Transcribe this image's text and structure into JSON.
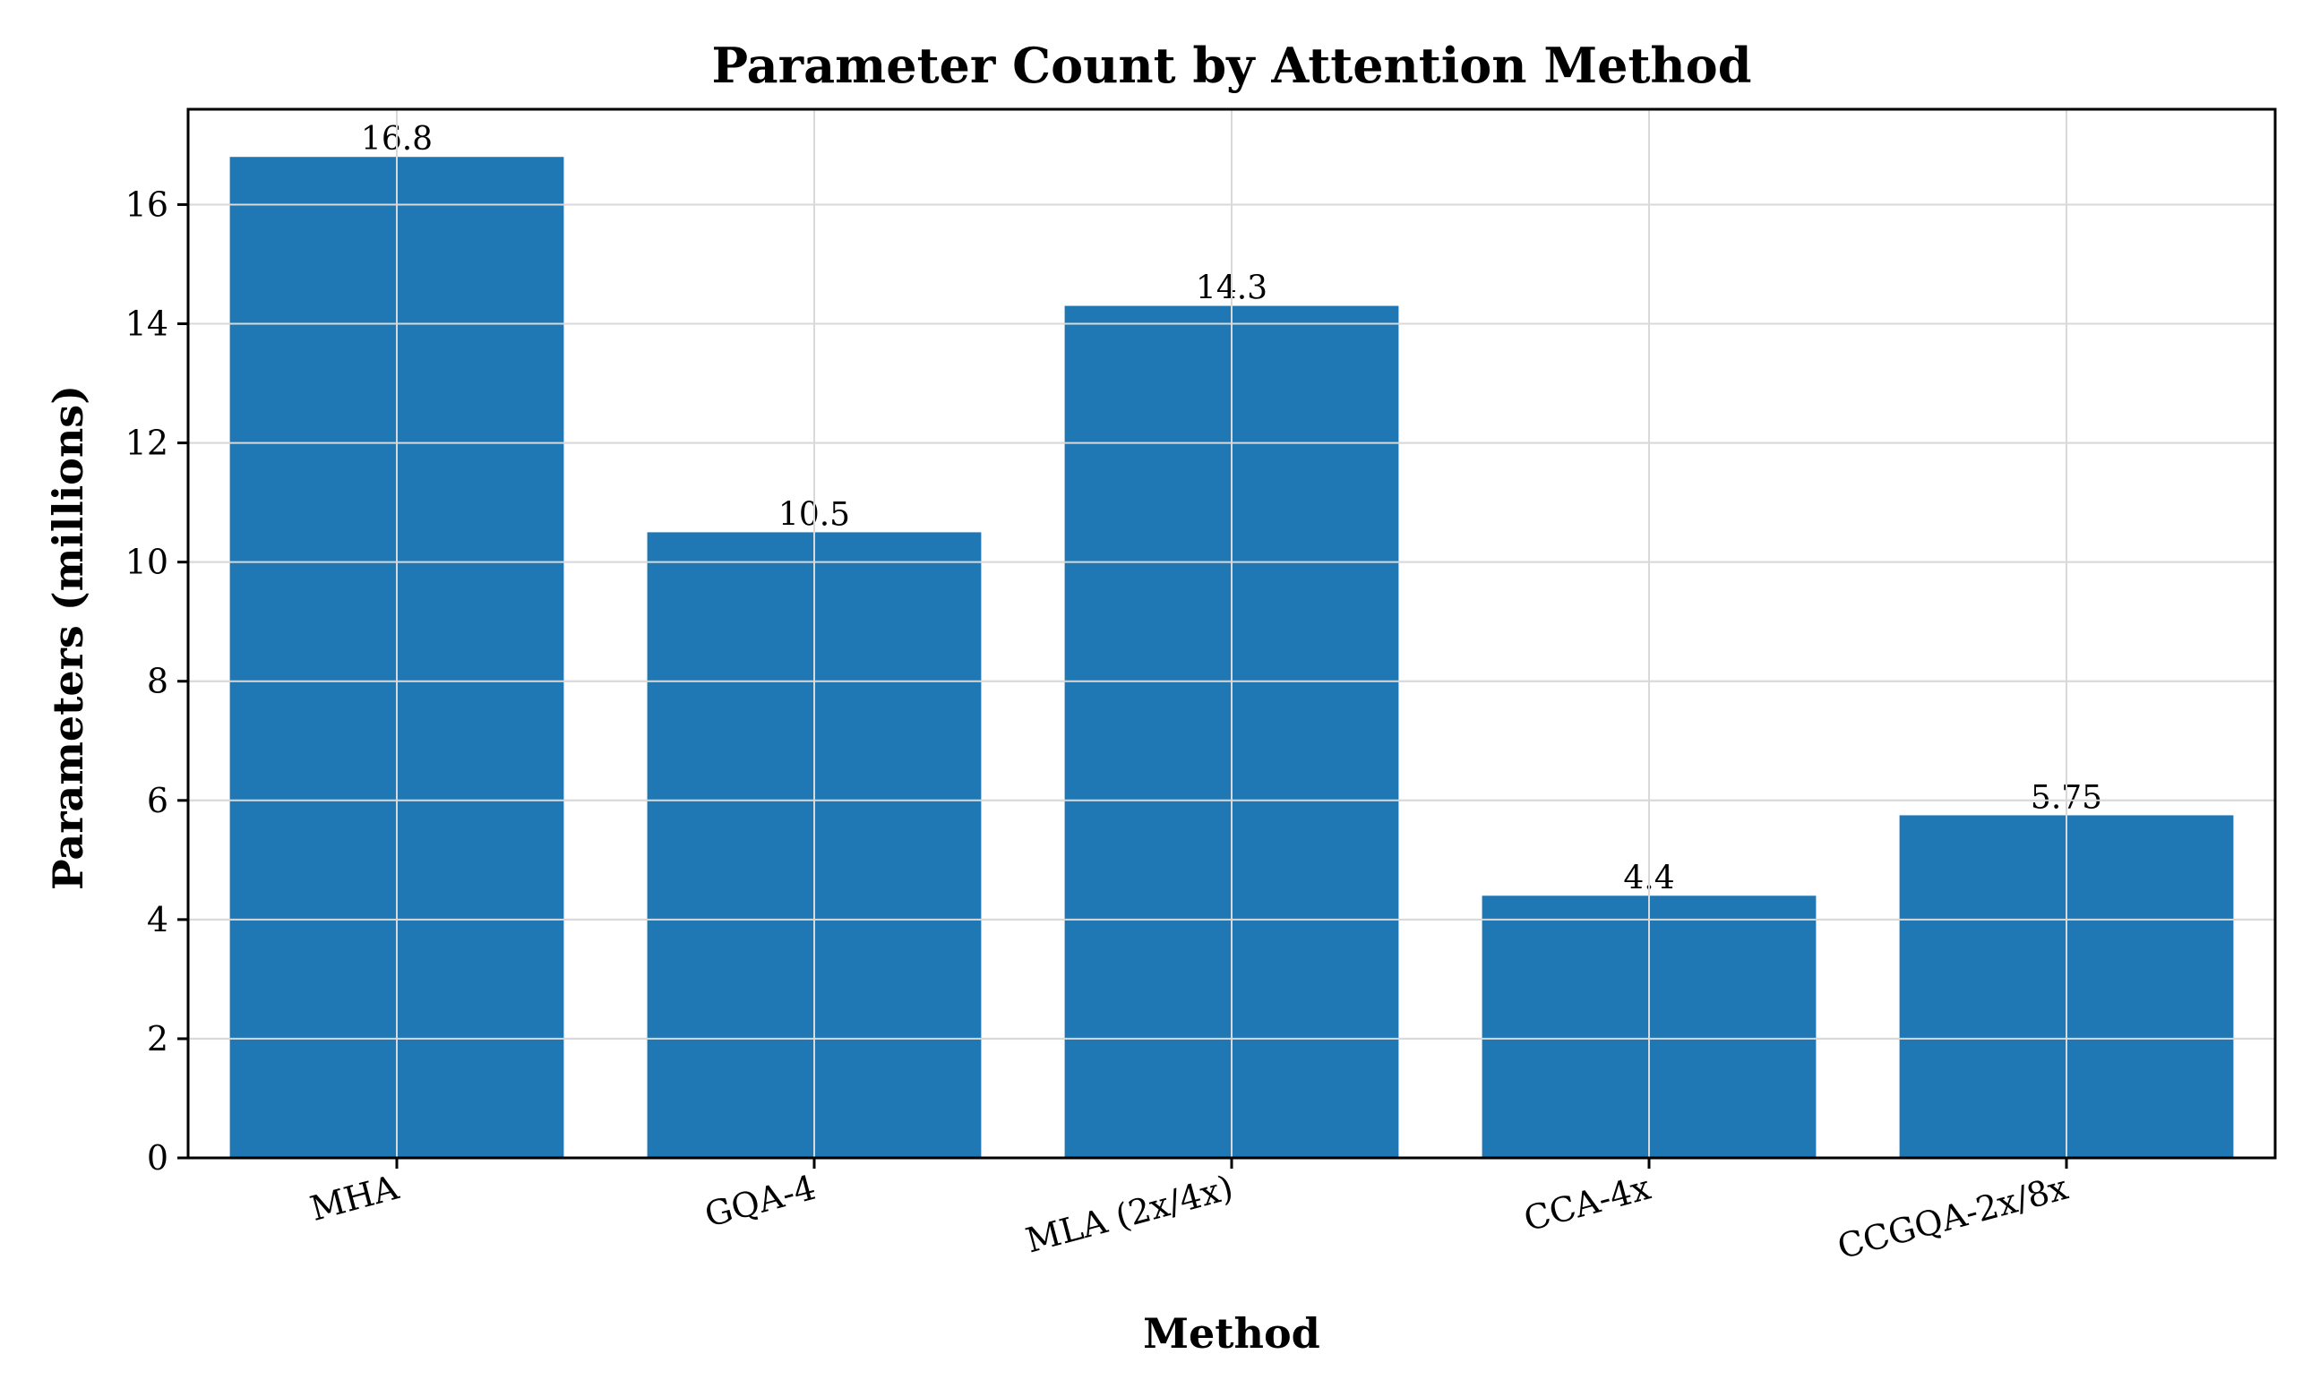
{
  "chart_data": {
    "type": "bar",
    "title": "Parameter Count by Attention Method",
    "xlabel": "Method",
    "ylabel": "Parameters (millions)",
    "categories": [
      "MHA",
      "GQA-4",
      "MLA (2x/4x)",
      "CCA-4x",
      "CCGQA-2x/8x"
    ],
    "values": [
      16.8,
      10.5,
      14.3,
      4.4,
      5.75
    ],
    "value_labels": [
      "16.8",
      "10.5",
      "14.3",
      "4.4",
      "5.75"
    ],
    "ylim": [
      0,
      17.6
    ],
    "yticks": [
      0,
      2,
      4,
      6,
      8,
      10,
      12,
      14,
      16
    ],
    "grid": true,
    "bar_color": "#1f77b4"
  }
}
